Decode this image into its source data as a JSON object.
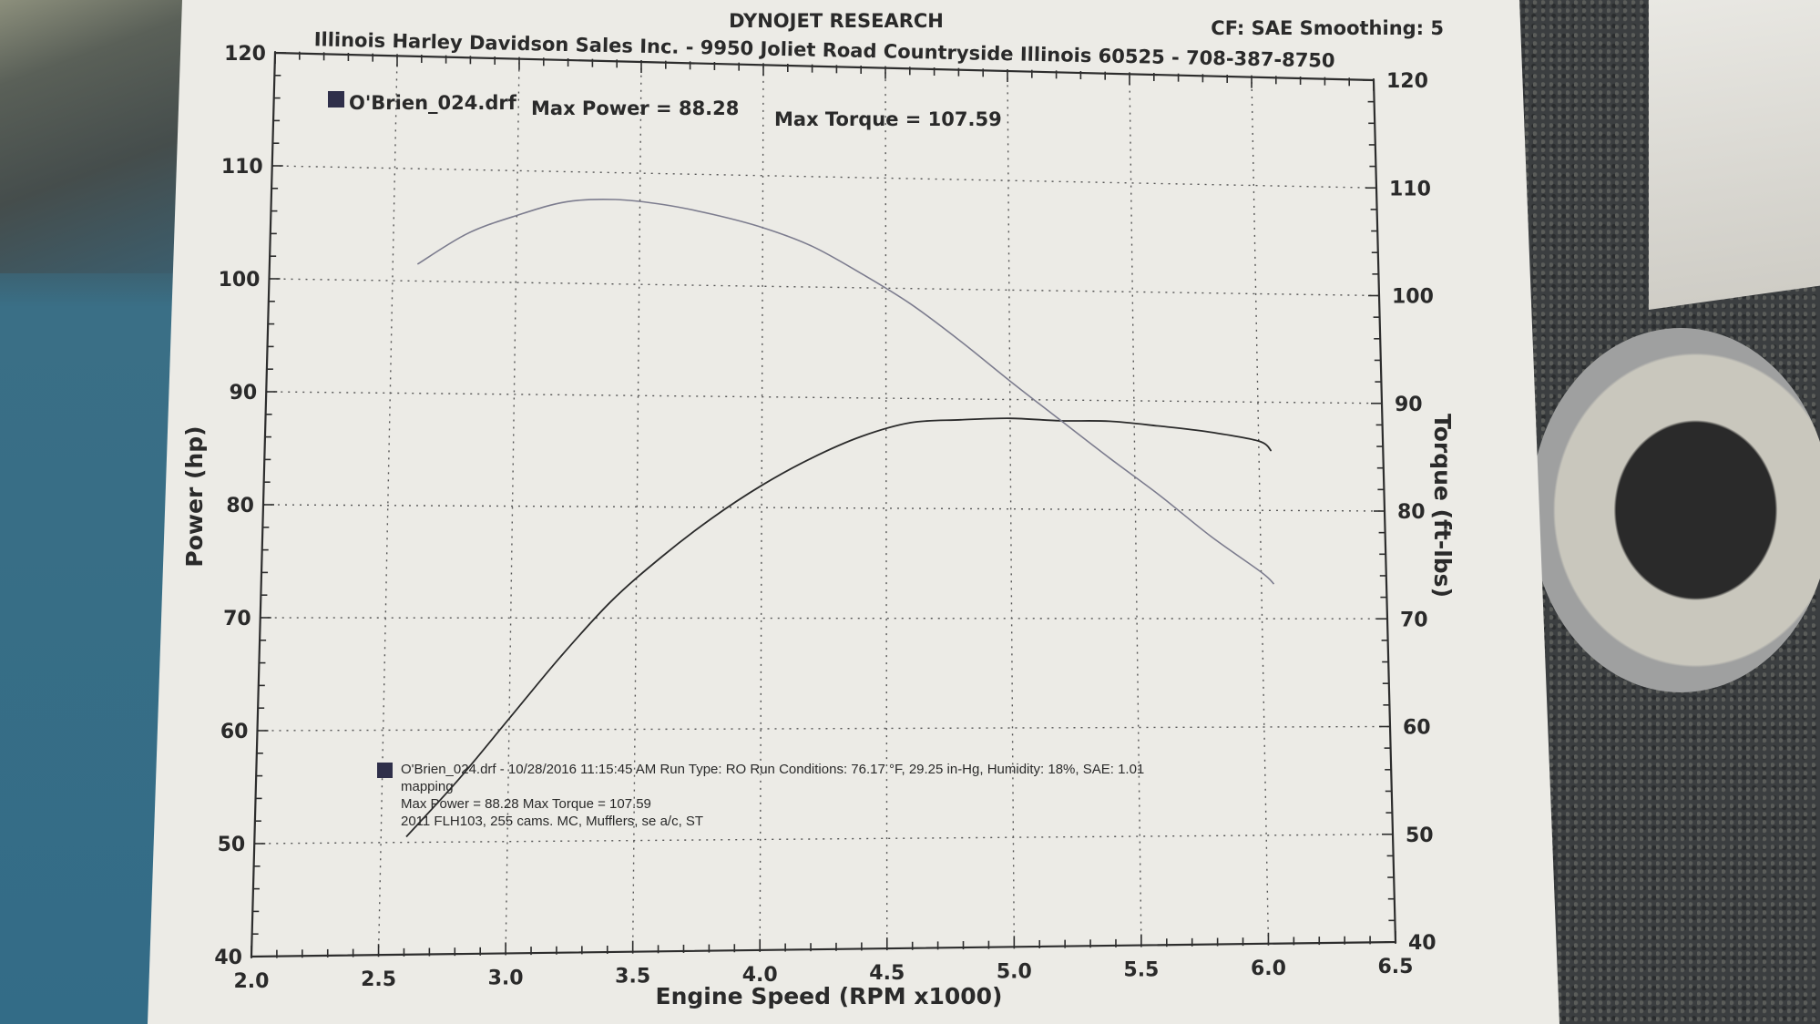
{
  "header": {
    "company": "DYNOJET RESEARCH",
    "settings": "CF: SAE  Smoothing: 5",
    "dealer": "Illinois Harley Davidson Sales Inc. - 9950 Joliet Road Countryside Illinois 60525 - 708-387-8750"
  },
  "legend": {
    "run_file": "O'Brien_024.drf",
    "max_power": "Max Power = 88.28",
    "max_torque": "Max Torque = 107.59",
    "marker_color": "#2f2f4a"
  },
  "run_info": {
    "line1": "O'Brien_024.drf - 10/28/2016 11:15:45 AM  Run Type: RO  Run Conditions: 76.17 °F, 29.25 in-Hg,  Humidity:  18%, SAE: 1.01",
    "line2": "mapping",
    "line3": "Max Power = 88.28  Max Torque = 107.59",
    "line4": "2011 FLH103, 255 cams. MC, Mufflers, se a/c, ST"
  },
  "chart_data": {
    "type": "line",
    "xlabel": "Engine Speed (RPM x1000)",
    "ylabel_left": "Power (hp)",
    "ylabel_right": "Torque (ft-lbs)",
    "xlim": [
      2.0,
      6.5
    ],
    "ylim_left": [
      40,
      120
    ],
    "ylim_right": [
      40,
      120
    ],
    "x_ticks": [
      "2.0",
      "2.5",
      "3.0",
      "3.5",
      "4.0",
      "4.5",
      "5.0",
      "5.5",
      "6.0",
      "6.5"
    ],
    "y_ticks_left": [
      "40",
      "50",
      "60",
      "70",
      "80",
      "90",
      "100",
      "110",
      "120"
    ],
    "y_ticks_right": [
      "40",
      "50",
      "60",
      "70",
      "80",
      "90",
      "100",
      "110",
      "120"
    ],
    "grid": true,
    "series": [
      {
        "name": "Power",
        "axis": "left",
        "color": "#2b2b2b",
        "x": [
          2.6,
          2.8,
          3.0,
          3.2,
          3.4,
          3.6,
          3.8,
          4.0,
          4.2,
          4.4,
          4.6,
          4.8,
          5.0,
          5.2,
          5.4,
          5.6,
          5.8,
          6.0,
          6.05
        ],
        "y": [
          50.5,
          55.5,
          61.0,
          66.5,
          71.5,
          75.5,
          79.0,
          82.0,
          84.5,
          86.5,
          87.8,
          88.1,
          88.28,
          88.1,
          88.1,
          87.7,
          87.2,
          86.4,
          85.5
        ]
      },
      {
        "name": "Torque",
        "axis": "right",
        "color": "#7c7c8e",
        "x": [
          2.6,
          2.8,
          3.0,
          3.2,
          3.4,
          3.6,
          3.8,
          4.0,
          4.2,
          4.4,
          4.6,
          4.8,
          5.0,
          5.2,
          5.4,
          5.6,
          5.8,
          6.0,
          6.05
        ],
        "y": [
          101.5,
          104.3,
          106.0,
          107.3,
          107.59,
          107.2,
          106.4,
          105.3,
          103.7,
          101.3,
          98.6,
          95.3,
          91.7,
          88.2,
          84.7,
          81.3,
          77.6,
          74.3,
          73.2
        ]
      }
    ]
  }
}
